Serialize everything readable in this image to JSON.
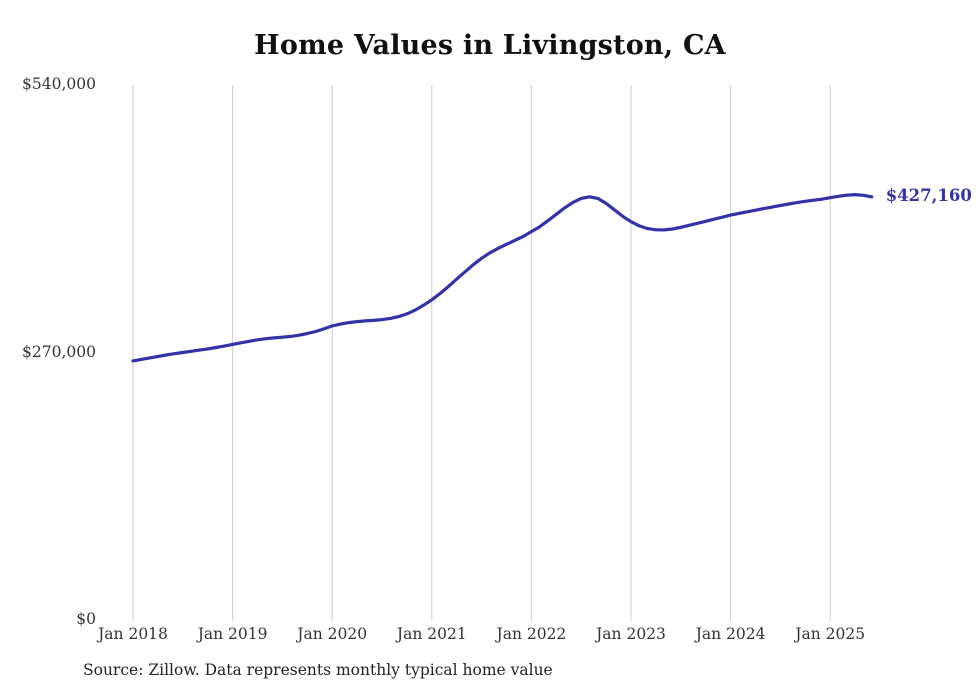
{
  "title": "Home Values in Livingston, CA",
  "source_note": "Source: Zillow. Data represents monthly typical home value",
  "end_label": "$427,160",
  "colors": {
    "line": "#3432a8",
    "grid": "#cccccc",
    "text": "#333333",
    "title": "#111111"
  },
  "y_axis": {
    "ticks": [
      {
        "label": "$540,000",
        "value": 540000
      },
      {
        "label": "$270,000",
        "value": 270000
      },
      {
        "label": "$0",
        "value": 0
      }
    ]
  },
  "x_axis": {
    "ticks": [
      "Jan 2018",
      "Jan 2019",
      "Jan 2020",
      "Jan 2021",
      "Jan 2022",
      "Jan 2023",
      "Jan 2024",
      "Jan 2025"
    ]
  },
  "chart_data": {
    "type": "line",
    "title": "Home Values in Livingston, CA",
    "series_name": "Monthly typical home value",
    "x_start": "2018-01",
    "x_interval": "month",
    "ylim": [
      0,
      540000
    ],
    "grid": "vertical-only",
    "legend": "none",
    "end_value": 427160,
    "values": [
      261500,
      263000,
      264500,
      266000,
      267500,
      268800,
      270000,
      271200,
      272400,
      273600,
      275000,
      276500,
      278200,
      279800,
      281300,
      282800,
      283900,
      284700,
      285400,
      286300,
      287500,
      289200,
      291200,
      293800,
      296800,
      298700,
      300200,
      301200,
      301900,
      302400,
      303200,
      304400,
      306200,
      309000,
      312800,
      317600,
      323200,
      329600,
      336600,
      344100,
      351500,
      358600,
      365100,
      370600,
      375200,
      379200,
      383100,
      387100,
      392000,
      397000,
      403000,
      409500,
      416000,
      421500,
      425500,
      427200,
      425500,
      420500,
      414000,
      407500,
      402000,
      397800,
      395100,
      393800,
      393700,
      394700,
      396400,
      398400,
      400400,
      402400,
      404500,
      406600,
      408700,
      410400,
      412000,
      413600,
      415200,
      416800,
      418400,
      419900,
      421300,
      422600,
      423700,
      424700,
      426200,
      427700,
      428800,
      429400,
      428700,
      427160
    ]
  }
}
